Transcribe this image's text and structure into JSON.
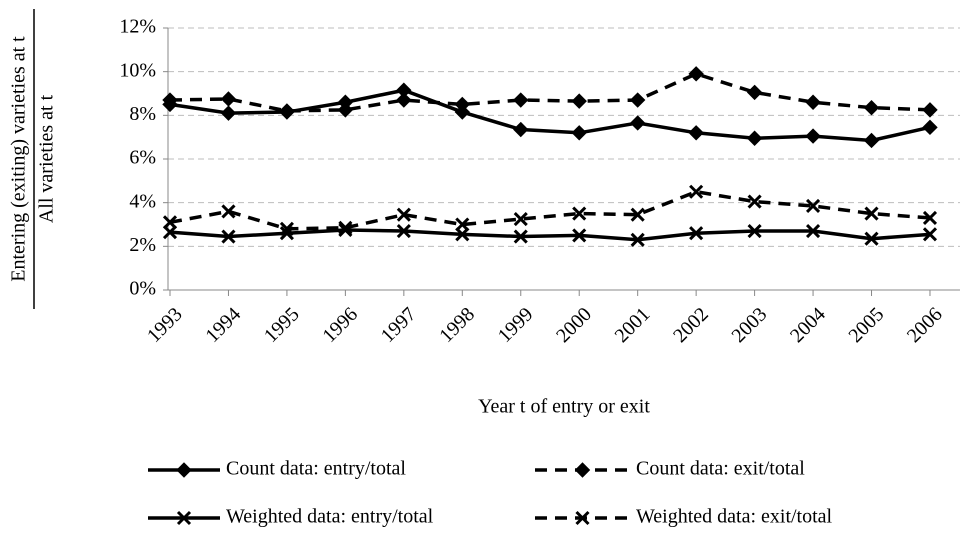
{
  "chart_data": {
    "type": "line",
    "ylabel": {
      "numerator": "Entering (exiting) varieties at t",
      "denominator": "All varieties at t"
    },
    "xlabel": "Year t of entry or exit",
    "categories": [
      "1993",
      "1994",
      "1995",
      "1996",
      "1997",
      "1998",
      "1999",
      "2000",
      "2001",
      "2002",
      "2003",
      "2004",
      "2005",
      "2006"
    ],
    "ylim": [
      0,
      12
    ],
    "yticks": [
      {
        "value": 0,
        "label": "0%"
      },
      {
        "value": 2,
        "label": "2%"
      },
      {
        "value": 4,
        "label": "4%"
      },
      {
        "value": 6,
        "label": "6%"
      },
      {
        "value": 8,
        "label": "8%"
      },
      {
        "value": 10,
        "label": "10%"
      },
      {
        "value": 12,
        "label": "12%"
      }
    ],
    "grid": true,
    "series": [
      {
        "name": "Count data: entry/total",
        "color": "#000000",
        "dashed": false,
        "marker": "diamond",
        "values": [
          8.5,
          8.1,
          8.15,
          8.6,
          9.15,
          8.15,
          7.35,
          7.2,
          7.65,
          7.2,
          6.95,
          7.05,
          6.85,
          7.45
        ]
      },
      {
        "name": "Count data: exit/total",
        "color": "#000000",
        "dashed": true,
        "marker": "diamond",
        "values": [
          8.7,
          8.75,
          8.2,
          8.25,
          8.7,
          8.5,
          8.7,
          8.65,
          8.7,
          9.9,
          9.05,
          8.6,
          8.35,
          8.25
        ]
      },
      {
        "name": "Weighted data: entry/total",
        "color": "#000000",
        "dashed": false,
        "marker": "x",
        "values": [
          2.65,
          2.45,
          2.6,
          2.75,
          2.7,
          2.55,
          2.45,
          2.5,
          2.3,
          2.6,
          2.7,
          2.7,
          2.35,
          2.55
        ]
      },
      {
        "name": "Weighted data: exit/total",
        "color": "#000000",
        "dashed": true,
        "marker": "x",
        "values": [
          3.1,
          3.6,
          2.8,
          2.85,
          3.45,
          3.0,
          3.25,
          3.5,
          3.45,
          4.5,
          4.05,
          3.85,
          3.5,
          3.3
        ]
      }
    ]
  }
}
